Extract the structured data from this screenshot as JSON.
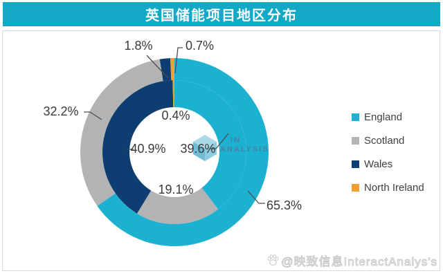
{
  "title": "英国储能项目地区分布",
  "colors": {
    "header_bg": "#12a9c7",
    "header_text": "#ffffff",
    "frame_border": "#d9d9d9",
    "label_text": "#3a3a3a",
    "leader_line": "#4d4d4d",
    "watermark_blue": "#4a7ca1"
  },
  "chart_data": {
    "type": "pie",
    "subtype": "double-donut",
    "title": "英国储能项目地区分布",
    "categories": [
      "England",
      "Scotland",
      "Wales",
      "North Ireland"
    ],
    "colors": [
      "#1cb1d1",
      "#b3b3b3",
      "#0e3d71",
      "#f0a030"
    ],
    "series": [
      {
        "name": "outer-ring",
        "values": [
          65.3,
          32.2,
          1.8,
          0.7
        ],
        "labels": [
          "65.3%",
          "32.2%",
          "1.8%",
          "0.7%"
        ]
      },
      {
        "name": "inner-ring",
        "values": [
          39.6,
          19.1,
          40.9,
          0.4
        ],
        "labels": [
          "39.6%",
          "19.1%",
          "40.9%",
          "0.4%"
        ]
      }
    ],
    "legend_position": "right",
    "start_angle_deg": 0,
    "direction": "clockwise"
  },
  "legend": {
    "items": [
      {
        "label": "England",
        "color": "#1cb1d1"
      },
      {
        "label": "Scotland",
        "color": "#b3b3b3"
      },
      {
        "label": "Wales",
        "color": "#0e3d71"
      },
      {
        "label": "North Ireland",
        "color": "#f0a030"
      }
    ]
  },
  "watermarks": {
    "center_logo_line1": "IN",
    "center_logo_line2": "ANALYSIS",
    "bottom_text": "@映致信息InteractAnalys's"
  }
}
